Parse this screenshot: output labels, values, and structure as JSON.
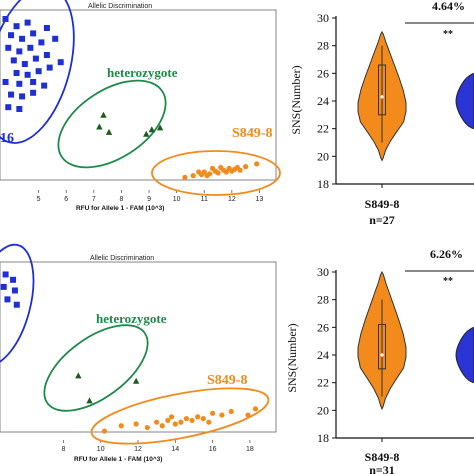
{
  "colors": {
    "blue": "#1f2fd1",
    "green": "#1e8a4a",
    "dark_green": "#1d5a1d",
    "orange": "#f28a1c",
    "violin_blue": "#2b35d6"
  },
  "chart_data": [
    {
      "type": "scatter",
      "title": "Allelic Discrimination",
      "xlabel": "RFU for Allele 1 - FAM (10^3)",
      "xlim": [
        3.6,
        13.6
      ],
      "xticks": [
        "5",
        "6",
        "7",
        "8",
        "9",
        "10",
        "11",
        "12",
        "13"
      ],
      "xtick_values": [
        5,
        6,
        7,
        8,
        9,
        10,
        11,
        12,
        13
      ],
      "ylim": [
        0,
        10
      ],
      "clusters": [
        {
          "label": "16",
          "color": "#1f2fd1",
          "marker": "square",
          "points": [
            [
              3.8,
              9.5
            ],
            [
              4.2,
              9.1
            ],
            [
              4.6,
              9.3
            ],
            [
              4.0,
              8.6
            ],
            [
              4.4,
              8.4
            ],
            [
              4.8,
              8.7
            ],
            [
              5.3,
              9.0
            ],
            [
              3.9,
              7.9
            ],
            [
              4.3,
              7.7
            ],
            [
              4.7,
              7.9
            ],
            [
              5.1,
              8.2
            ],
            [
              5.6,
              8.4
            ],
            [
              4.1,
              7.2
            ],
            [
              4.5,
              7.0
            ],
            [
              4.9,
              7.3
            ],
            [
              5.3,
              7.5
            ],
            [
              5.8,
              7.1
            ],
            [
              4.2,
              6.5
            ],
            [
              4.6,
              6.4
            ],
            [
              5.0,
              6.6
            ],
            [
              5.4,
              6.8
            ],
            [
              3.8,
              6.0
            ],
            [
              4.3,
              5.9
            ],
            [
              4.8,
              6.0
            ],
            [
              5.2,
              5.8
            ],
            [
              4.0,
              5.3
            ],
            [
              4.4,
              5.2
            ],
            [
              4.8,
              5.4
            ],
            [
              3.9,
              4.6
            ],
            [
              4.3,
              4.5
            ]
          ]
        },
        {
          "label": "heterozygote",
          "color": "#1e8a4a",
          "marker_color": "#1d5a1d",
          "marker": "triangle",
          "points": [
            [
              7.35,
              4.15
            ],
            [
              7.2,
              3.5
            ],
            [
              7.55,
              3.2
            ],
            [
              8.9,
              3.1
            ],
            [
              9.1,
              3.35
            ],
            [
              9.4,
              3.45
            ]
          ]
        },
        {
          "label": "S849-8",
          "color": "#f28a1c",
          "marker": "circle",
          "points": [
            [
              10.3,
              0.7
            ],
            [
              10.6,
              0.8
            ],
            [
              10.9,
              0.85
            ],
            [
              11.0,
              1.0
            ],
            [
              11.2,
              0.9
            ],
            [
              11.4,
              1.05
            ],
            [
              11.5,
              0.95
            ],
            [
              11.7,
              1.1
            ],
            [
              11.8,
              1.0
            ],
            [
              11.9,
              1.2
            ],
            [
              12.0,
              1.05
            ],
            [
              12.1,
              1.15
            ],
            [
              12.2,
              1.25
            ],
            [
              12.3,
              1.1
            ],
            [
              12.5,
              1.3
            ],
            [
              11.3,
              1.2
            ],
            [
              11.6,
              1.25
            ],
            [
              12.9,
              1.45
            ],
            [
              10.8,
              1.0
            ],
            [
              11.1,
              0.8
            ]
          ]
        }
      ]
    },
    {
      "type": "violin",
      "ylabel": "SNS(Number)",
      "ylim": [
        18,
        30
      ],
      "yticks": [
        18,
        20,
        22,
        24,
        26,
        28,
        30
      ],
      "categories": [
        "S849-8",
        "n=27"
      ],
      "annotation_pct": "4.64%",
      "annotation_sig": "**",
      "violins": [
        {
          "color": "#f28a1c",
          "min": 19.7,
          "q1": 23.0,
          "median": 24.3,
          "q3": 26.6,
          "max": 29.0,
          "whisker_low": 21.0,
          "whisker_high": 28.0
        },
        {
          "color": "#2b35d6",
          "partial": true,
          "min": 22.0,
          "max": 26.0
        }
      ]
    },
    {
      "type": "scatter",
      "title": "Allelic Discrimination",
      "xlabel": "RFU for Allele 1 - FAM (10^3)",
      "xlim": [
        4.6,
        19.4
      ],
      "xticks": [
        "8",
        "10",
        "12",
        "14",
        "16",
        "18"
      ],
      "xtick_values": [
        8,
        10,
        12,
        14,
        16,
        18
      ],
      "ylim": [
        0,
        10
      ],
      "clusters": [
        {
          "label": "",
          "color": "#1f2fd1",
          "marker": "square",
          "points": [
            [
              4.9,
              9.3
            ],
            [
              5.3,
              9.0
            ],
            [
              4.8,
              8.6
            ],
            [
              5.4,
              8.4
            ],
            [
              5.0,
              7.9
            ],
            [
              5.5,
              7.6
            ]
          ]
        },
        {
          "label": "heterozygote",
          "color": "#1e8a4a",
          "marker_color": "#1d5a1d",
          "marker": "triangle",
          "points": [
            [
              8.8,
              3.6
            ],
            [
              9.4,
              2.2
            ],
            [
              11.9,
              3.3
            ]
          ]
        },
        {
          "label": "S849-8",
          "color": "#f28a1c",
          "marker": "circle",
          "points": [
            [
              10.2,
              0.5
            ],
            [
              11.1,
              0.8
            ],
            [
              11.9,
              0.9
            ],
            [
              12.5,
              0.7
            ],
            [
              13.0,
              1.0
            ],
            [
              13.3,
              0.8
            ],
            [
              13.6,
              1.1
            ],
            [
              14.0,
              0.9
            ],
            [
              14.3,
              1.0
            ],
            [
              14.6,
              1.2
            ],
            [
              14.9,
              1.1
            ],
            [
              15.2,
              1.3
            ],
            [
              15.5,
              1.2
            ],
            [
              16.0,
              1.5
            ],
            [
              16.5,
              1.4
            ],
            [
              17.0,
              1.6
            ],
            [
              17.9,
              1.4
            ],
            [
              18.3,
              1.75
            ],
            [
              13.8,
              1.3
            ],
            [
              15.8,
              1.0
            ]
          ]
        }
      ]
    },
    {
      "type": "violin",
      "ylabel": "SNS(Number)",
      "ylim": [
        18,
        30
      ],
      "yticks": [
        18,
        20,
        22,
        24,
        26,
        28,
        30
      ],
      "categories": [
        "S849-8",
        "n=31"
      ],
      "annotation_pct": "6.26%",
      "annotation_sig": "**",
      "violins": [
        {
          "color": "#f28a1c",
          "min": 20.1,
          "q1": 23.0,
          "median": 24.0,
          "q3": 26.2,
          "max": 30.0,
          "whisker_low": 21.0,
          "whisker_high": 28.0
        },
        {
          "color": "#2b35d6",
          "partial": true,
          "min": 22.0,
          "max": 26.0
        }
      ]
    }
  ]
}
